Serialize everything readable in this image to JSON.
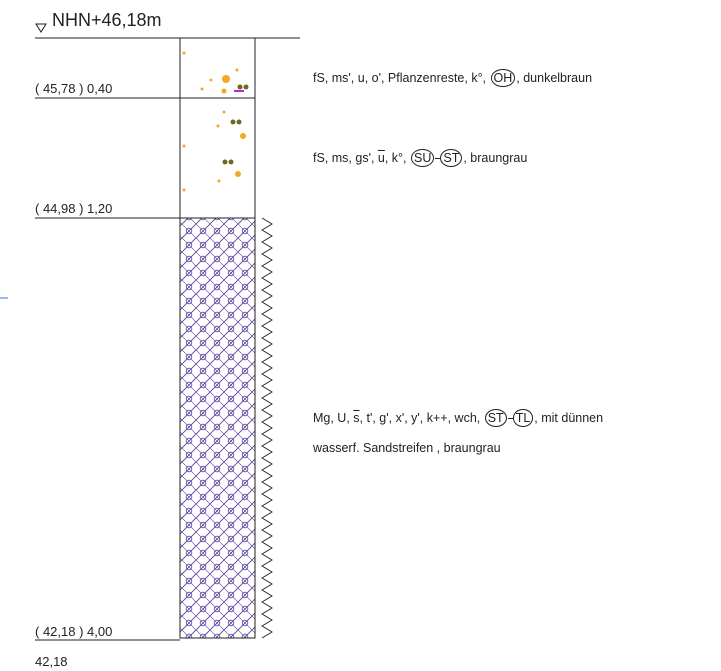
{
  "header": {
    "title": "NHN+46,18m"
  },
  "layers": [
    {
      "boundary_label": "( 45,78 ) 0,40",
      "description": [
        [
          {
            "text": "fS, ms', u, o', Pflanzenreste, k°, "
          },
          {
            "text": "OH",
            "circled": true
          },
          {
            "text": ", dunkelbraun"
          }
        ]
      ]
    },
    {
      "boundary_label": "( 44,98 ) 1,20",
      "description": [
        [
          {
            "text": "fS, ms, gs', "
          },
          {
            "text": "u",
            "overline": true
          },
          {
            "text": ", k°, "
          },
          {
            "text": "SU",
            "circled": true
          },
          {
            "text": "ST",
            "circled": true,
            "joined": true
          },
          {
            "text": ", braungrau"
          }
        ]
      ]
    },
    {
      "boundary_label": "( 42,18 ) 4,00",
      "description": [
        [
          {
            "text": "Mg, U, "
          },
          {
            "text": "s",
            "overline": true
          },
          {
            "text": ", t', g', x', y', k++, wch, "
          },
          {
            "text": "ST",
            "circled": true
          },
          {
            "text": "TL",
            "circled": true,
            "joined": true
          },
          {
            "text": ", mit dünnen"
          }
        ],
        [
          {
            "text": "wasserf. Sandstreifen , braungrau"
          }
        ]
      ]
    }
  ],
  "bottom_label": "42,18"
}
